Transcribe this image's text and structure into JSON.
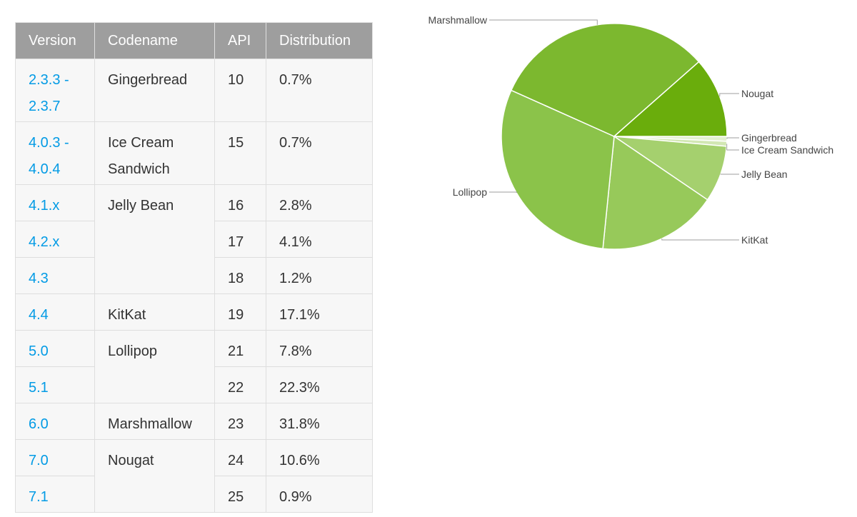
{
  "table": {
    "headers": [
      "Version",
      "Codename",
      "API",
      "Distribution"
    ],
    "rows": [
      {
        "version": "2.3.3 -\n2.3.7",
        "codename": "Gingerbread",
        "api": "10",
        "distribution": "0.7%"
      },
      {
        "version": "4.0.3 -\n4.0.4",
        "codename": "Ice Cream\nSandwich",
        "api": "15",
        "distribution": "0.7%"
      },
      {
        "version": "4.1.x",
        "codename": "Jelly Bean",
        "api": "16",
        "distribution": "2.8%"
      },
      {
        "version": "4.2.x",
        "codename": "",
        "api": "17",
        "distribution": "4.1%"
      },
      {
        "version": "4.3",
        "codename": "",
        "api": "18",
        "distribution": "1.2%"
      },
      {
        "version": "4.4",
        "codename": "KitKat",
        "api": "19",
        "distribution": "17.1%"
      },
      {
        "version": "5.0",
        "codename": "Lollipop",
        "api": "21",
        "distribution": "7.8%"
      },
      {
        "version": "5.1",
        "codename": "",
        "api": "22",
        "distribution": "22.3%"
      },
      {
        "version": "6.0",
        "codename": "Marshmallow",
        "api": "23",
        "distribution": "31.8%"
      },
      {
        "version": "7.0",
        "codename": "Nougat",
        "api": "24",
        "distribution": "10.6%"
      },
      {
        "version": "7.1",
        "codename": "",
        "api": "25",
        "distribution": "0.9%"
      }
    ]
  },
  "chart_data": {
    "type": "pie",
    "start": "3 o'clock, clockwise",
    "slices": [
      {
        "label": "Gingerbread",
        "value": 0.7,
        "color": "#e3f0cf"
      },
      {
        "label": "Ice Cream Sandwich",
        "value": 0.7,
        "color": "#d2e7b3"
      },
      {
        "label": "Jelly Bean",
        "value": 8.1,
        "color": "#a5d06e"
      },
      {
        "label": "KitKat",
        "value": 17.1,
        "color": "#97c95a"
      },
      {
        "label": "Lollipop",
        "value": 30.1,
        "color": "#8bc34a"
      },
      {
        "label": "Marshmallow",
        "value": 31.8,
        "color": "#7cb82f"
      },
      {
        "label": "Nougat",
        "value": 11.5,
        "color": "#6aad0c"
      }
    ]
  }
}
